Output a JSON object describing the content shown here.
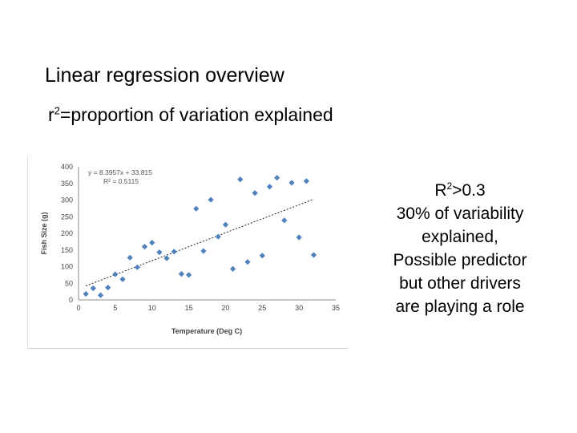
{
  "slide": {
    "title": "Linear regression overview",
    "subtitle_r": "r",
    "subtitle_sup": "2",
    "subtitle_rest": "=proportion of variation explained"
  },
  "side_text": {
    "r2_base": "R",
    "r2_sup": "2",
    "r2_rest": ">0.3",
    "line2": "30% of variability",
    "line3": "explained,",
    "line4": "Possible predictor",
    "line5": "but other drivers",
    "line6": "are playing a role"
  },
  "chart_data": {
    "type": "scatter",
    "xlabel": "Temperature (Deg C)",
    "ylabel": "Fish Size (g)",
    "xlim": [
      0,
      35
    ],
    "ylim": [
      0,
      400
    ],
    "xticks": [
      0,
      5,
      10,
      15,
      20,
      25,
      30,
      35
    ],
    "yticks": [
      0,
      50,
      100,
      150,
      200,
      250,
      300,
      350,
      400
    ],
    "grid": false,
    "marker_color": "#4f81bd",
    "trendline_color": "#222222",
    "equation": "y = 8.3957x + 33.815",
    "r_squared": "R² = 0.5115",
    "trendline": {
      "slope": 8.3957,
      "intercept": 33.815,
      "x_range": [
        1,
        32
      ]
    },
    "points": [
      [
        1,
        18
      ],
      [
        2,
        35
      ],
      [
        3,
        14
      ],
      [
        4,
        37
      ],
      [
        5,
        77
      ],
      [
        6,
        62
      ],
      [
        7,
        127
      ],
      [
        8,
        98
      ],
      [
        9,
        160
      ],
      [
        10,
        172
      ],
      [
        11,
        143
      ],
      [
        12,
        125
      ],
      [
        13,
        145
      ],
      [
        14,
        78
      ],
      [
        15,
        75
      ],
      [
        16,
        274
      ],
      [
        17,
        147
      ],
      [
        18,
        301
      ],
      [
        19,
        190
      ],
      [
        20,
        226
      ],
      [
        21,
        93
      ],
      [
        22,
        362
      ],
      [
        23,
        114
      ],
      [
        24,
        321
      ],
      [
        25,
        133
      ],
      [
        26,
        340
      ],
      [
        27,
        367
      ],
      [
        28,
        239
      ],
      [
        29,
        352
      ],
      [
        30,
        188
      ],
      [
        31,
        357
      ],
      [
        32,
        135
      ]
    ]
  }
}
